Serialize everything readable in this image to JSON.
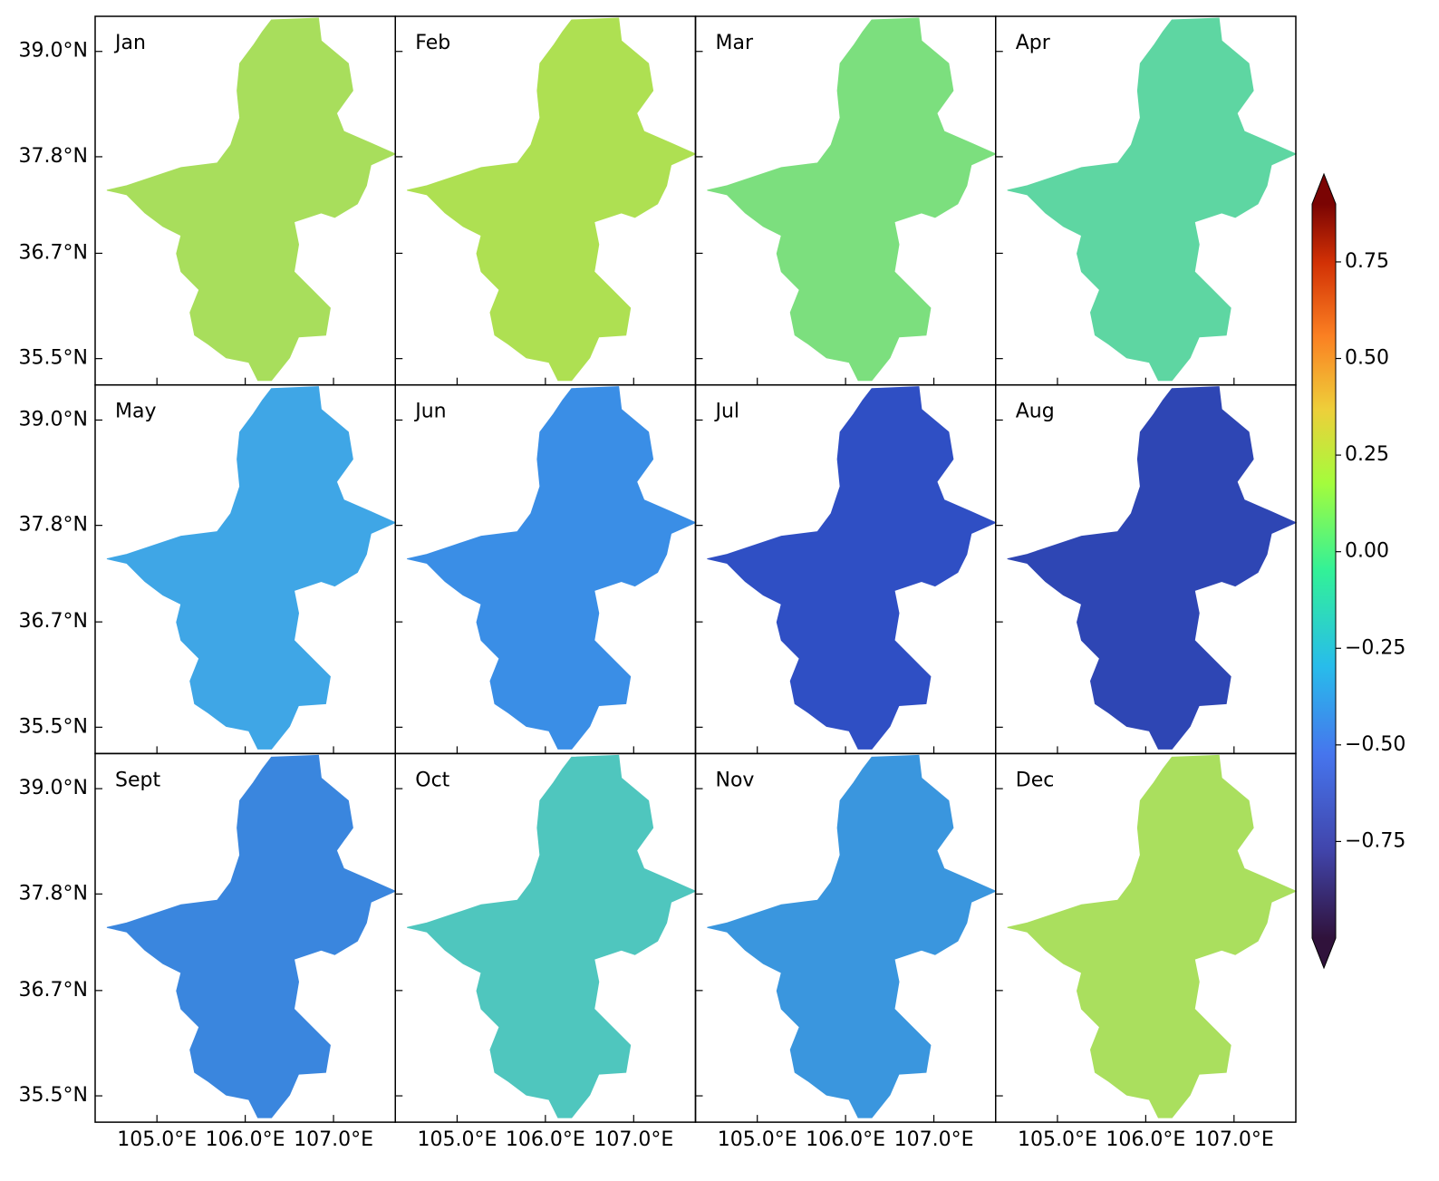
{
  "chart_data": {
    "type": "map-grid",
    "panels": [
      {
        "label": "Jan",
        "color": "#a8de5c"
      },
      {
        "label": "Feb",
        "color": "#aee052"
      },
      {
        "label": "Mar",
        "color": "#7cdf7e"
      },
      {
        "label": "Apr",
        "color": "#5ed6a2"
      },
      {
        "label": "May",
        "color": "#3fa6e6"
      },
      {
        "label": "Jun",
        "color": "#3a8ee6"
      },
      {
        "label": "Jul",
        "color": "#2f4fc4"
      },
      {
        "label": "Aug",
        "color": "#2e46b4"
      },
      {
        "label": "Sept",
        "color": "#3a86de"
      },
      {
        "label": "Oct",
        "color": "#4fc6be"
      },
      {
        "label": "Nov",
        "color": "#3a96de"
      },
      {
        "label": "Dec",
        "color": "#aadf5e"
      }
    ],
    "xlim": [
      104.3,
      107.7
    ],
    "xticks": [
      {
        "value": 105,
        "label": "105.0°E"
      },
      {
        "value": 106,
        "label": "106.0°E"
      },
      {
        "value": 107,
        "label": "107.0°E"
      }
    ],
    "ylim": [
      35.2,
      39.4
    ],
    "yticks": [
      {
        "value": 39,
        "label": "39.0°N"
      },
      {
        "value": 37.8,
        "label": "37.8°N"
      },
      {
        "value": 36.7,
        "label": "36.7°N"
      },
      {
        "value": 35.5,
        "label": "35.5°N"
      }
    ],
    "colorbar": {
      "clim": [
        -1.0,
        0.9
      ],
      "ticks": [
        {
          "value": 0.75,
          "label": "0.75"
        },
        {
          "value": 0.5,
          "label": "0.50"
        },
        {
          "value": 0.25,
          "label": "0.25"
        },
        {
          "value": 0,
          "label": "0.00"
        },
        {
          "value": -0.25,
          "label": "−0.25"
        },
        {
          "value": -0.5,
          "label": "−0.50"
        },
        {
          "value": -0.75,
          "label": "−0.75"
        }
      ]
    }
  }
}
